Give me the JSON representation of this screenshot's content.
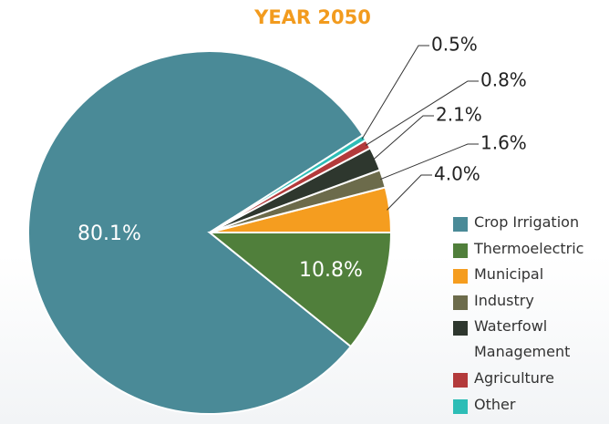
{
  "chart_data": {
    "type": "pie",
    "title": "YEAR 2050",
    "categories": [
      "Crop Irrigation",
      "Thermoelectric",
      "Municipal",
      "Industry",
      "Waterfowl Management",
      "Agriculture",
      "Other"
    ],
    "values": [
      80.1,
      10.8,
      4.0,
      1.6,
      2.1,
      0.8,
      0.5
    ],
    "value_labels": [
      "80.1%",
      "10.8%",
      "4.0%",
      "1.6%",
      "2.1%",
      "0.8%",
      "0.5%"
    ],
    "colors": [
      "#4a8a97",
      "#507f3b",
      "#f59d1f",
      "#6c6b4b",
      "#2e372e",
      "#b33a3b",
      "#2dbdb6"
    ],
    "legend": "right"
  }
}
